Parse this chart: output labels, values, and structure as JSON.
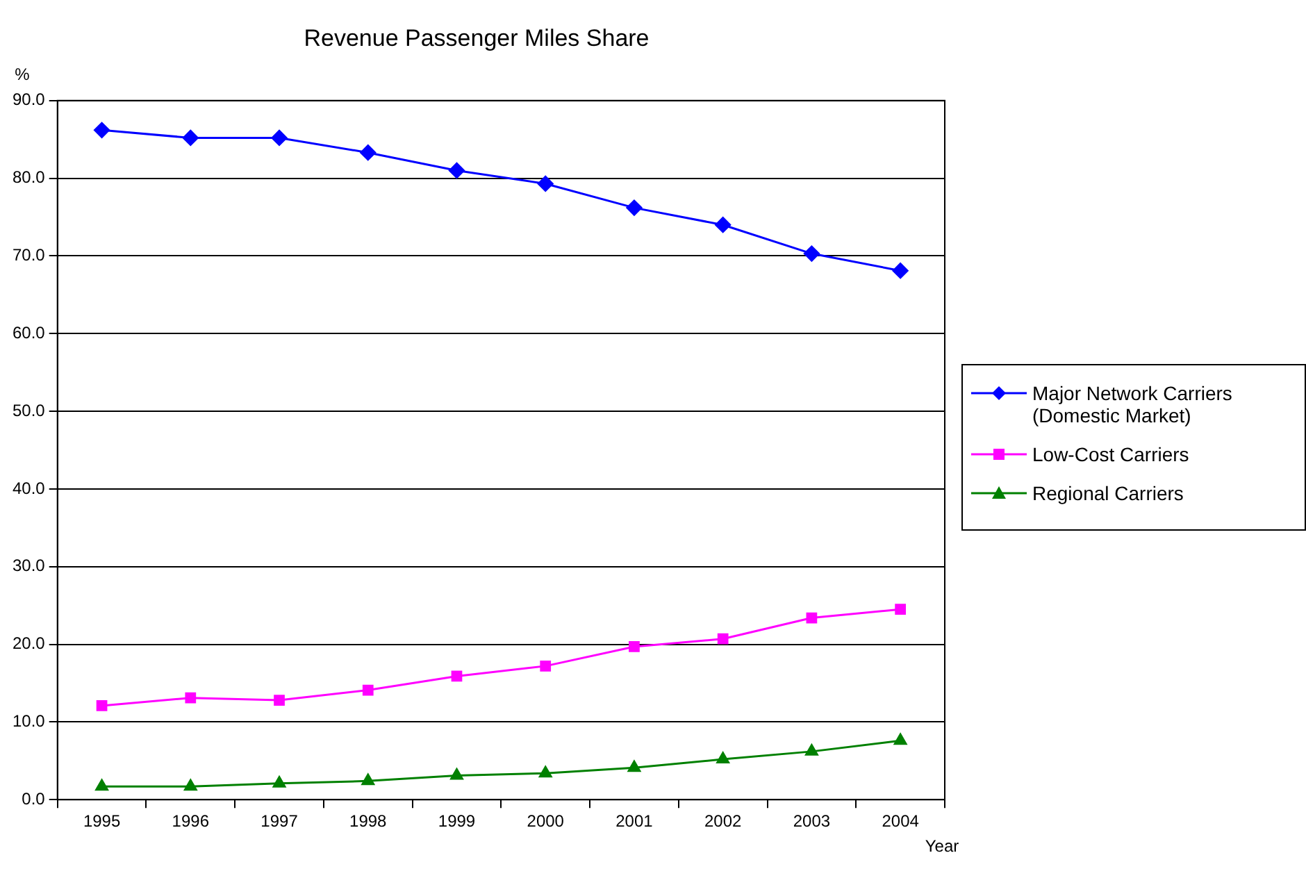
{
  "chart_data": {
    "type": "line",
    "title": "Revenue Passenger Miles Share",
    "ylabel": "%",
    "xlabel": "Year",
    "categories": [
      "1995",
      "1996",
      "1997",
      "1998",
      "1999",
      "2000",
      "2001",
      "2002",
      "2003",
      "2004"
    ],
    "series": [
      {
        "name": "Major Network Carriers (Domestic Market)",
        "color": "#0000ff",
        "marker": "diamond",
        "values": [
          86.2,
          85.2,
          85.2,
          83.3,
          81.0,
          79.3,
          76.2,
          74.0,
          70.3,
          68.1
        ]
      },
      {
        "name": "Low-Cost Carriers",
        "color": "#ff00ff",
        "marker": "square",
        "values": [
          12.1,
          13.1,
          12.8,
          14.1,
          15.9,
          17.2,
          19.7,
          20.7,
          23.4,
          24.5
        ]
      },
      {
        "name": "Regional Carriers",
        "color": "#008000",
        "marker": "triangle",
        "values": [
          1.7,
          1.7,
          2.1,
          2.4,
          3.1,
          3.4,
          4.1,
          5.2,
          6.2,
          7.6
        ]
      }
    ],
    "ylim": [
      0,
      90
    ],
    "yticks": [
      {
        "value": 0,
        "label": "0.0"
      },
      {
        "value": 10,
        "label": "10.0"
      },
      {
        "value": 20,
        "label": "20.0"
      },
      {
        "value": 30,
        "label": "30.0"
      },
      {
        "value": 40,
        "label": "40.0"
      },
      {
        "value": 50,
        "label": "50.0"
      },
      {
        "value": 60,
        "label": "60.0"
      },
      {
        "value": 70,
        "label": "70.0"
      },
      {
        "value": 80,
        "label": "80.0"
      },
      {
        "value": 90,
        "label": "90.0"
      }
    ],
    "grid": "y",
    "legend": "right",
    "line_style": "solid"
  }
}
